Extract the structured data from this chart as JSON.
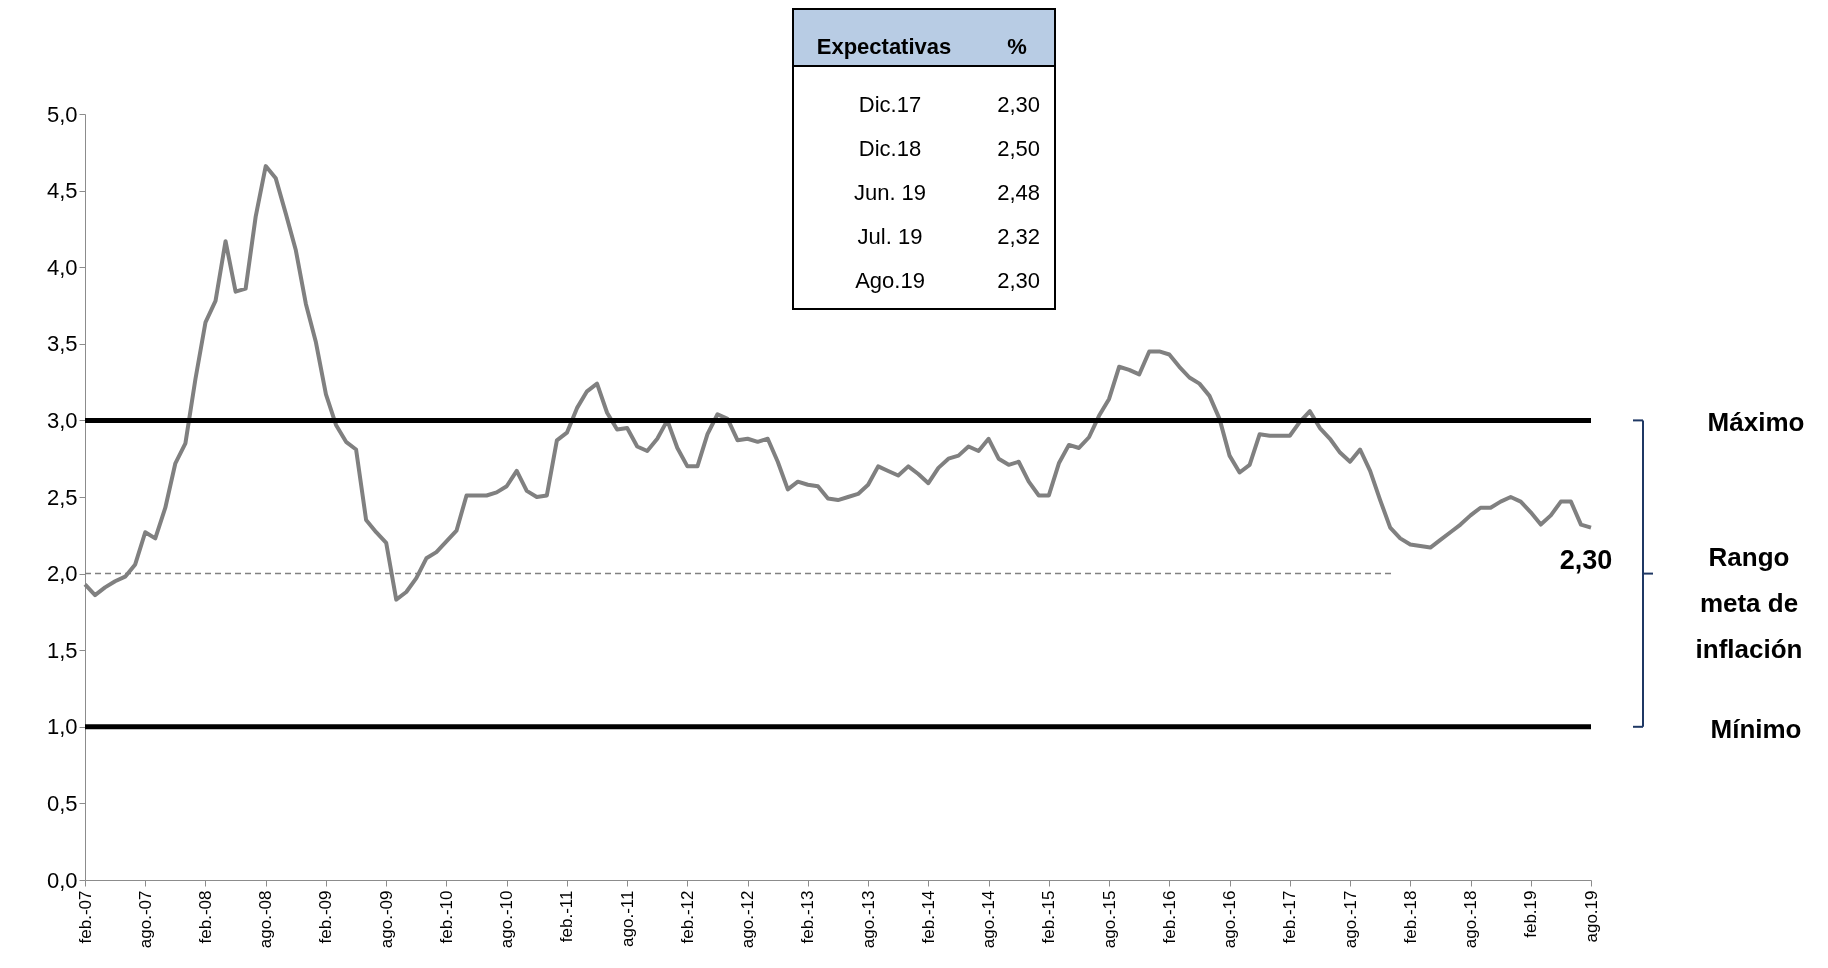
{
  "chart_data": {
    "type": "line",
    "categories": [
      "feb.-07",
      null,
      null,
      null,
      null,
      null,
      "ago.-07",
      null,
      null,
      null,
      null,
      null,
      "feb.-08",
      null,
      null,
      null,
      null,
      null,
      "ago.-08",
      null,
      null,
      null,
      null,
      null,
      "feb.-09",
      null,
      null,
      null,
      null,
      null,
      "ago.-09",
      null,
      null,
      null,
      null,
      null,
      "feb.-10",
      null,
      null,
      null,
      null,
      null,
      "ago.-10",
      null,
      null,
      null,
      null,
      null,
      "feb.-11",
      null,
      null,
      null,
      null,
      null,
      "ago.-11",
      null,
      null,
      null,
      null,
      null,
      "feb.-12",
      null,
      null,
      null,
      null,
      null,
      "ago.-12",
      null,
      null,
      null,
      null,
      null,
      "feb.-13",
      null,
      null,
      null,
      null,
      null,
      "ago.-13",
      null,
      null,
      null,
      null,
      null,
      "feb.-14",
      null,
      null,
      null,
      null,
      null,
      "ago.-14",
      null,
      null,
      null,
      null,
      null,
      "feb.-15",
      null,
      null,
      null,
      null,
      null,
      "ago.-15",
      null,
      null,
      null,
      null,
      null,
      "feb.-16",
      null,
      null,
      null,
      null,
      null,
      "ago.-16",
      null,
      null,
      null,
      null,
      null,
      "feb.-17",
      null,
      null,
      null,
      null,
      null,
      "ago.-17",
      null,
      null,
      null,
      null,
      null,
      "feb.-18",
      null,
      null,
      null,
      null,
      null,
      "ago.-18",
      null,
      null,
      null,
      null,
      null,
      "feb.19",
      null,
      null,
      null,
      null,
      null,
      "ago.19"
    ],
    "series": [
      {
        "color": "#808080",
        "values": [
          1.93,
          1.86,
          1.91,
          1.95,
          1.98,
          2.06,
          2.27,
          2.23,
          2.43,
          2.72,
          2.85,
          3.27,
          3.64,
          3.78,
          4.17,
          3.84,
          3.86,
          4.33,
          4.66,
          4.58,
          4.35,
          4.11,
          3.76,
          3.51,
          3.17,
          2.97,
          2.86,
          2.81,
          2.35,
          2.27,
          2.2,
          1.83,
          1.88,
          1.97,
          2.1,
          2.14,
          2.21,
          2.28,
          2.51,
          2.51,
          2.51,
          2.53,
          2.57,
          2.67,
          2.54,
          2.5,
          2.51,
          2.87,
          2.92,
          3.08,
          3.19,
          3.24,
          3.05,
          2.94,
          2.95,
          2.83,
          2.8,
          2.88,
          3.0,
          2.82,
          2.7,
          2.7,
          2.91,
          3.04,
          3.01,
          2.87,
          2.88,
          2.86,
          2.88,
          2.73,
          2.55,
          2.6,
          2.58,
          2.57,
          2.49,
          2.48,
          2.5,
          2.52,
          2.58,
          2.7,
          2.67,
          2.64,
          2.7,
          2.65,
          2.59,
          2.69,
          2.75,
          2.77,
          2.83,
          2.8,
          2.88,
          2.75,
          2.71,
          2.73,
          2.6,
          2.51,
          2.51,
          2.72,
          2.84,
          2.82,
          2.89,
          3.03,
          3.14,
          3.35,
          3.33,
          3.3,
          3.45,
          3.45,
          3.43,
          3.35,
          3.28,
          3.24,
          3.16,
          3.01,
          2.77,
          2.66,
          2.71,
          2.91,
          2.9,
          2.9,
          2.9,
          2.99,
          3.06,
          2.95,
          2.88,
          2.79,
          2.73,
          2.81,
          2.67,
          2.48,
          2.3,
          2.23,
          2.19,
          2.18,
          2.17,
          2.22,
          2.27,
          2.32,
          2.38,
          2.43,
          2.43,
          2.47,
          2.5,
          2.47,
          2.4,
          2.32,
          2.38,
          2.47,
          2.47,
          2.32,
          2.3
        ]
      }
    ],
    "ylim": [
      0,
      5
    ],
    "yticks": [
      {
        "value": 0,
        "label": "0,0"
      },
      {
        "value": 0.5,
        "label": "0,5"
      },
      {
        "value": 1,
        "label": "1,0"
      },
      {
        "value": 1.5,
        "label": "1,5"
      },
      {
        "value": 2,
        "label": "2,0"
      },
      {
        "value": 2.5,
        "label": "2,5"
      },
      {
        "value": 3,
        "label": "3,0"
      },
      {
        "value": 3.5,
        "label": "3,5"
      },
      {
        "value": 4,
        "label": "4,0"
      },
      {
        "value": 4.5,
        "label": "4,5"
      },
      {
        "value": 5,
        "label": "5,0"
      }
    ],
    "grid": false,
    "ref_lines": [
      {
        "axis": "y",
        "value": 3,
        "color": "#000000",
        "line_style": "solid"
      },
      {
        "axis": "y",
        "value": 1,
        "color": "#000000",
        "line_style": "solid"
      },
      {
        "axis": "y",
        "value": 2,
        "color": "#808080",
        "line_style": "dashed"
      }
    ],
    "annotations": [
      "Expectativas",
      "%",
      "Dic.17",
      "2,30",
      "Dic.18",
      "2,50",
      "Jun. 19",
      "2,48",
      "Jul. 19",
      "2,32",
      "Ago.19",
      "2,30",
      "Máximo",
      "Rango meta de inflación",
      "Mínimo",
      {
        "text": "2,30",
        "x": "ago.19",
        "y": 2.3
      }
    ]
  }
}
